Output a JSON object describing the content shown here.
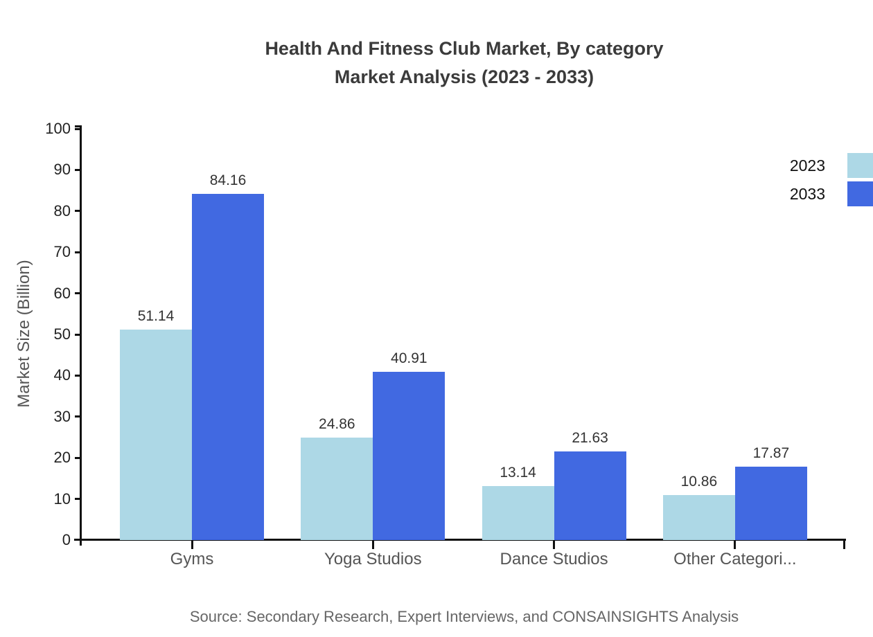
{
  "title": {
    "line1": "Health And Fitness Club Market, By category",
    "line2": "Market Analysis (2023 - 2033)"
  },
  "y_axis": {
    "label": "Market Size (Billion)"
  },
  "legend": [
    {
      "label": "2023",
      "color": "#ADD8E6"
    },
    {
      "label": "2033",
      "color": "#4169E1"
    }
  ],
  "source": "Source: Secondary Research, Expert Interviews, and CONSAINSIGHTS Analysis",
  "colors": {
    "axis": "#111111",
    "tick_label": "#222222",
    "category_label": "#555555",
    "value_label": "#333333"
  },
  "chart_data": {
    "type": "bar",
    "title": "Health And Fitness Club Market, By category Market Analysis (2023 - 2033)",
    "categories": [
      "Gyms",
      "Yoga Studios",
      "Dance Studios",
      "Other Categori..."
    ],
    "series": [
      {
        "name": "2023",
        "color": "#ADD8E6",
        "values": [
          51.14,
          24.86,
          13.14,
          10.86
        ]
      },
      {
        "name": "2033",
        "color": "#4169E1",
        "values": [
          84.16,
          40.91,
          21.63,
          17.87
        ]
      }
    ],
    "xlabel": "",
    "ylabel": "Market Size (Billion)",
    "ylim": [
      0,
      100
    ],
    "ytick_step": 10,
    "grid": false,
    "legend_position": "top-right",
    "value_labels": true
  }
}
